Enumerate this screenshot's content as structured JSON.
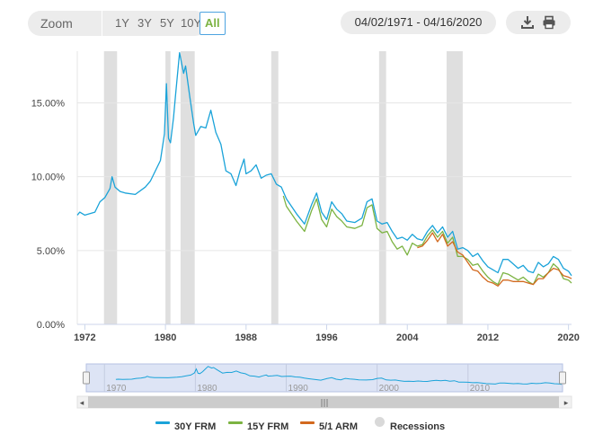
{
  "toolbar": {
    "zoom_label": "Zoom",
    "zoom_buttons": [
      "1Y",
      "3Y",
      "5Y",
      "10Y",
      "All"
    ],
    "active_zoom": "All",
    "date_range": "04/02/1971 - 04/16/2020",
    "download_icon": "download-icon",
    "print_icon": "print-icon"
  },
  "colors": {
    "frm30": "#1aa3d9",
    "frm15": "#7cb342",
    "arm51": "#d2691e",
    "recession": "#d9d9d9",
    "active_zoom_text": "#7cb342"
  },
  "chart_data": {
    "type": "line",
    "title": "",
    "xlabel": "",
    "ylabel": "",
    "ylim": [
      0,
      18.5
    ],
    "xlim": [
      1971.25,
      2020.3
    ],
    "y_ticks": [
      "0.00%",
      "5.00%",
      "10.00%",
      "15.00%"
    ],
    "y_tick_values": [
      0,
      5,
      10,
      15
    ],
    "x_ticks": [
      "1972",
      "1980",
      "1988",
      "1996",
      "2004",
      "2012",
      "2020"
    ],
    "x_tick_values": [
      1972,
      1980,
      1988,
      1996,
      2004,
      2012,
      2020
    ],
    "grid": true,
    "legend_position": "bottom",
    "recessions": [
      [
        1973.9,
        1975.2
      ],
      [
        1980.0,
        1980.5
      ],
      [
        1981.5,
        1982.9
      ],
      [
        1990.5,
        1991.2
      ],
      [
        2001.2,
        2001.9
      ],
      [
        2007.9,
        2009.5
      ]
    ],
    "series": [
      {
        "name": "30Y FRM",
        "x": [
          1971.25,
          1971.5,
          1972.0,
          1972.5,
          1973.0,
          1973.5,
          1974.0,
          1974.5,
          1974.7,
          1975.0,
          1975.5,
          1976.0,
          1977.0,
          1978.0,
          1978.5,
          1979.0,
          1979.5,
          1979.9,
          1980.1,
          1980.3,
          1980.5,
          1980.8,
          1981.0,
          1981.4,
          1981.8,
          1982.0,
          1982.4,
          1982.8,
          1983.0,
          1983.5,
          1984.0,
          1984.5,
          1985.0,
          1985.5,
          1986.0,
          1986.5,
          1987.0,
          1987.4,
          1987.8,
          1988.0,
          1988.5,
          1989.0,
          1989.5,
          1990.0,
          1990.5,
          1991.0,
          1991.5,
          1992.0,
          1992.5,
          1993.0,
          1993.8,
          1994.5,
          1995.0,
          1995.5,
          1996.0,
          1996.5,
          1997.0,
          1997.5,
          1998.0,
          1998.8,
          1999.5,
          2000.0,
          2000.5,
          2001.0,
          2001.5,
          2002.0,
          2002.5,
          2003.0,
          2003.5,
          2004.0,
          2004.5,
          2005.0,
          2005.5,
          2006.0,
          2006.5,
          2007.0,
          2007.5,
          2008.0,
          2008.5,
          2009.0,
          2009.5,
          2010.0,
          2010.5,
          2011.0,
          2011.5,
          2012.0,
          2012.5,
          2013.0,
          2013.5,
          2014.0,
          2014.5,
          2015.0,
          2015.5,
          2016.0,
          2016.5,
          2017.0,
          2017.5,
          2018.0,
          2018.5,
          2019.0,
          2019.5,
          2020.0,
          2020.3
        ],
        "values": [
          7.4,
          7.6,
          7.4,
          7.5,
          7.6,
          8.3,
          8.6,
          9.2,
          10.0,
          9.3,
          9.0,
          8.9,
          8.8,
          9.3,
          9.7,
          10.4,
          11.1,
          12.9,
          16.3,
          12.6,
          12.3,
          14.0,
          15.5,
          18.4,
          17.0,
          17.5,
          15.5,
          13.6,
          12.8,
          13.4,
          13.3,
          14.5,
          13.0,
          12.2,
          10.4,
          10.2,
          9.4,
          10.4,
          11.2,
          10.2,
          10.4,
          10.8,
          9.9,
          10.1,
          10.2,
          9.5,
          9.3,
          8.5,
          8.0,
          7.5,
          6.8,
          8.1,
          8.9,
          7.6,
          7.1,
          8.3,
          7.8,
          7.5,
          7.0,
          6.9,
          7.2,
          8.3,
          8.5,
          7.0,
          6.8,
          6.9,
          6.3,
          5.8,
          5.9,
          5.7,
          6.1,
          5.8,
          5.7,
          6.3,
          6.7,
          6.2,
          6.6,
          5.9,
          6.3,
          5.1,
          5.2,
          5.0,
          4.6,
          4.8,
          4.3,
          3.9,
          3.7,
          3.5,
          4.4,
          4.4,
          4.1,
          3.8,
          4.0,
          3.6,
          3.5,
          4.2,
          3.9,
          4.1,
          4.6,
          4.4,
          3.8,
          3.6,
          3.3
        ]
      },
      {
        "name": "15Y FRM",
        "x": [
          1991.7,
          1992.0,
          1992.5,
          1993.0,
          1993.8,
          1994.5,
          1995.0,
          1995.5,
          1996.0,
          1996.5,
          1997.0,
          1997.5,
          1998.0,
          1998.8,
          1999.5,
          2000.0,
          2000.5,
          2001.0,
          2001.5,
          2002.0,
          2002.5,
          2003.0,
          2003.5,
          2004.0,
          2004.5,
          2005.0,
          2005.5,
          2006.0,
          2006.5,
          2007.0,
          2007.5,
          2008.0,
          2008.5,
          2009.0,
          2009.5,
          2010.0,
          2010.5,
          2011.0,
          2011.5,
          2012.0,
          2012.5,
          2013.0,
          2013.5,
          2014.0,
          2014.5,
          2015.0,
          2015.5,
          2016.0,
          2016.5,
          2017.0,
          2017.5,
          2018.0,
          2018.5,
          2019.0,
          2019.5,
          2020.0,
          2020.3
        ],
        "values": [
          8.7,
          8.0,
          7.5,
          7.0,
          6.3,
          7.7,
          8.5,
          7.1,
          6.6,
          7.8,
          7.3,
          7.0,
          6.6,
          6.5,
          6.7,
          7.9,
          8.1,
          6.5,
          6.2,
          6.3,
          5.6,
          5.1,
          5.3,
          4.7,
          5.5,
          5.3,
          5.4,
          6.0,
          6.4,
          5.9,
          6.3,
          5.5,
          5.9,
          4.6,
          4.6,
          4.4,
          4.0,
          4.1,
          3.6,
          3.2,
          2.9,
          2.7,
          3.5,
          3.4,
          3.2,
          3.0,
          3.2,
          2.9,
          2.7,
          3.4,
          3.2,
          3.5,
          4.1,
          3.8,
          3.1,
          3.0,
          2.8
        ]
      },
      {
        "name": "5/1 ARM",
        "x": [
          2005.0,
          2005.5,
          2006.0,
          2006.5,
          2007.0,
          2007.5,
          2008.0,
          2008.5,
          2009.0,
          2009.5,
          2010.0,
          2010.5,
          2011.0,
          2011.5,
          2012.0,
          2012.5,
          2013.0,
          2013.5,
          2014.0,
          2014.5,
          2015.0,
          2015.5,
          2016.0,
          2016.5,
          2017.0,
          2017.5,
          2018.0,
          2018.5,
          2019.0,
          2019.5,
          2020.0,
          2020.3
        ],
        "values": [
          5.2,
          5.3,
          5.7,
          6.2,
          5.6,
          6.1,
          5.3,
          5.6,
          4.9,
          4.7,
          4.2,
          3.7,
          3.6,
          3.2,
          2.9,
          2.8,
          2.6,
          3.0,
          3.0,
          2.9,
          2.9,
          2.9,
          2.8,
          2.7,
          3.1,
          3.1,
          3.5,
          3.8,
          3.7,
          3.3,
          3.2,
          3.1
        ]
      }
    ]
  },
  "navigator": {
    "x_ticks": [
      "1970",
      "1980",
      "1990",
      "2000",
      "2010"
    ],
    "x_tick_values": [
      1970,
      1980,
      1990,
      2000,
      2010
    ],
    "scroll_grip": "|||",
    "left_arrow": "◂",
    "right_arrow": "▸"
  },
  "legend": {
    "frm30_label": "30Y FRM",
    "frm15_label": "15Y FRM",
    "arm51_label": "5/1 ARM",
    "recessions_label": "Recessions"
  }
}
